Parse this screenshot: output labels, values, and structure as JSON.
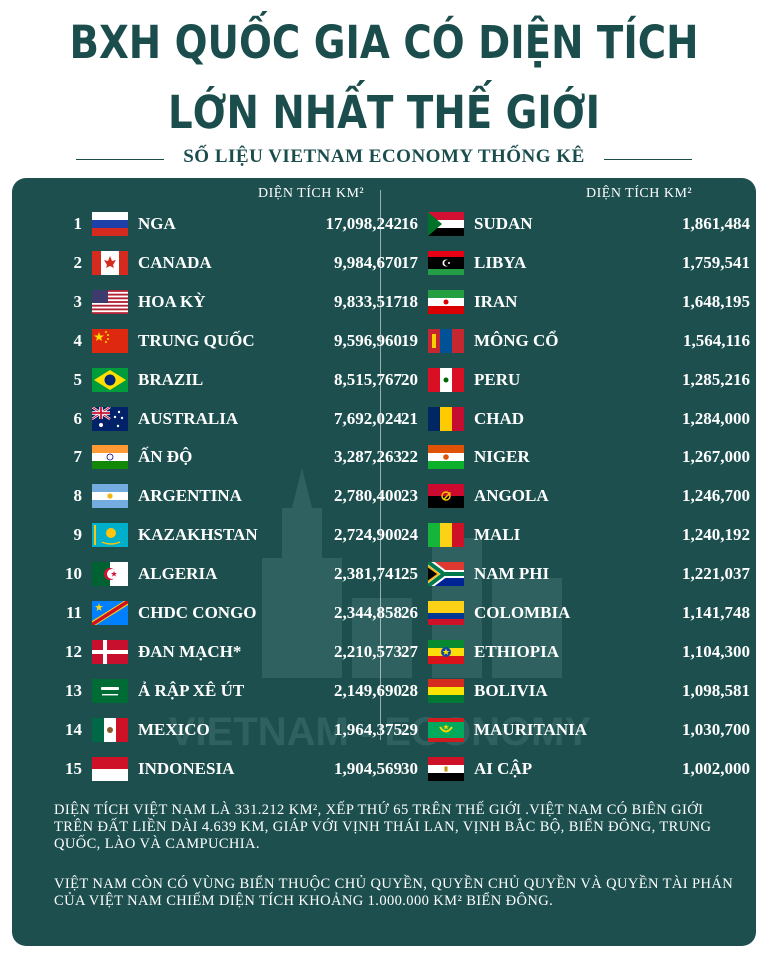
{
  "title_line1": "BXH QUỐC GIA CÓ DIỆN TÍCH",
  "title_line2": "LỚN NHẤT THẾ GIỚI",
  "subtitle": "SỐ LIỆU VIETNAM ECONOMY THỐNG KÊ",
  "column_header": "DIỆN TÍCH KM²",
  "left_column": [
    {
      "rank": "1",
      "name": "NGA",
      "area": "17,098,242",
      "flag": "russia"
    },
    {
      "rank": "2",
      "name": "CANADA",
      "area": "9,984,670",
      "flag": "canada"
    },
    {
      "rank": "3",
      "name": "HOA KỲ",
      "area": "9,833,517",
      "flag": "usa"
    },
    {
      "rank": "4",
      "name": "TRUNG QUỐC",
      "area": "9,596,960",
      "flag": "china"
    },
    {
      "rank": "5",
      "name": "BRAZIL",
      "area": "8,515,767",
      "flag": "brazil"
    },
    {
      "rank": "6",
      "name": "AUSTRALIA",
      "area": "7,692,024",
      "flag": "australia"
    },
    {
      "rank": "7",
      "name": "ẤN ĐỘ",
      "area": "3,287,263",
      "flag": "india"
    },
    {
      "rank": "8",
      "name": "ARGENTINA",
      "area": "2,780,400",
      "flag": "argentina"
    },
    {
      "rank": "9",
      "name": "KAZAKHSTAN",
      "area": "2,724,900",
      "flag": "kazakhstan"
    },
    {
      "rank": "10",
      "name": "ALGERIA",
      "area": "2,381,741",
      "flag": "algeria"
    },
    {
      "rank": "11",
      "name": "CHDC CONGO",
      "area": "2,344,858",
      "flag": "drcongo"
    },
    {
      "rank": "12",
      "name": "ĐAN MẠCH*",
      "area": "2,210,573",
      "flag": "denmark"
    },
    {
      "rank": "13",
      "name": "Ả RẬP XÊ ÚT",
      "area": "2,149,690",
      "flag": "saudi"
    },
    {
      "rank": "14",
      "name": "MEXICO",
      "area": "1,964,375",
      "flag": "mexico"
    },
    {
      "rank": "15",
      "name": "INDONESIA",
      "area": "1,904,569",
      "flag": "indonesia"
    }
  ],
  "right_column": [
    {
      "rank": "16",
      "name": "SUDAN",
      "area": "1,861,484",
      "flag": "sudan"
    },
    {
      "rank": "17",
      "name": "LIBYA",
      "area": "1,759,541",
      "flag": "libya"
    },
    {
      "rank": "18",
      "name": "IRAN",
      "area": "1,648,195",
      "flag": "iran"
    },
    {
      "rank": "19",
      "name": "MÔNG CỔ",
      "area": "1,564,116",
      "flag": "mongolia"
    },
    {
      "rank": "20",
      "name": "PERU",
      "area": "1,285,216",
      "flag": "peru"
    },
    {
      "rank": "21",
      "name": "CHAD",
      "area": "1,284,000",
      "flag": "chad"
    },
    {
      "rank": "22",
      "name": "NIGER",
      "area": "1,267,000",
      "flag": "niger"
    },
    {
      "rank": "23",
      "name": "ANGOLA",
      "area": "1,246,700",
      "flag": "angola"
    },
    {
      "rank": "24",
      "name": "MALI",
      "area": "1,240,192",
      "flag": "mali"
    },
    {
      "rank": "25",
      "name": "NAM PHI",
      "area": "1,221,037",
      "flag": "southafrica"
    },
    {
      "rank": "26",
      "name": "COLOMBIA",
      "area": "1,141,748",
      "flag": "colombia"
    },
    {
      "rank": "27",
      "name": "ETHIOPIA",
      "area": "1,104,300",
      "flag": "ethiopia"
    },
    {
      "rank": "28",
      "name": "BOLIVIA",
      "area": "1,098,581",
      "flag": "bolivia"
    },
    {
      "rank": "29",
      "name": "MAURITANIA",
      "area": "1,030,700",
      "flag": "mauritania"
    },
    {
      "rank": "30",
      "name": "AI CẬP",
      "area": "1,002,000",
      "flag": "egypt"
    }
  ],
  "watermark": "VIETNAM - ECONOMY",
  "note1": "DIỆN TÍCH VIỆT NAM LÀ 331.212 KM², XẾP THỨ 65 TRÊN THẾ GIỚI .VIỆT NAM CÓ BIÊN GIỚI TRÊN ĐẤT LIỀN DÀI 4.639 KM, GIÁP VỚI VỊNH THÁI LAN, VỊNH BẮC BỘ, BIỂN ĐÔNG, TRUNG QUỐC, LÀO VÀ CAMPUCHIA.",
  "note2": "VIỆT NAM CÒN CÓ VÙNG BIỂN THUỘC CHỦ QUYỀN, QUYỀN CHỦ QUYỀN VÀ QUYỀN TÀI PHÁN CỦA VIỆT NAM CHIẾM DIỆN TÍCH KHOẢNG 1.000.000 KM² BIỂN ĐÔNG.",
  "colors": {
    "panel": "#1d4f4f",
    "title": "#1b4d4d",
    "text": "#ffffff"
  }
}
